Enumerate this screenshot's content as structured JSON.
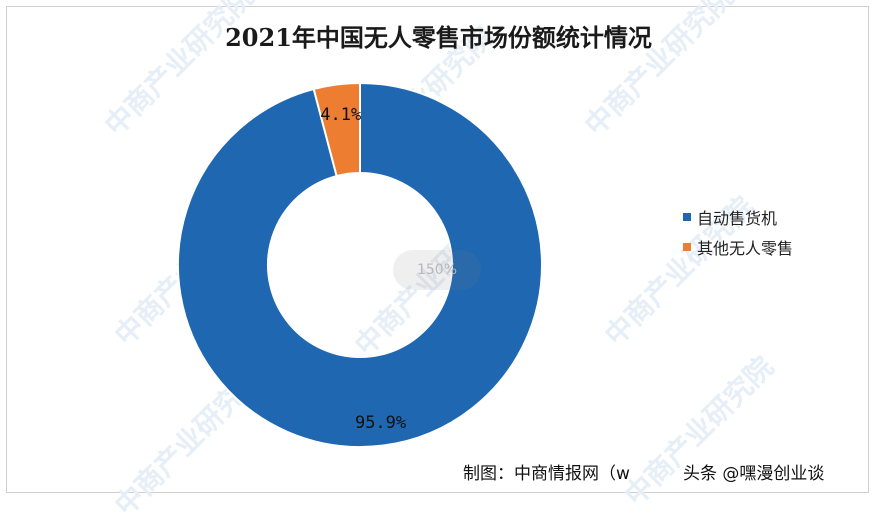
{
  "chart_data": {
    "type": "pie",
    "style": "donut",
    "title": "2021年中国无人零售市场份额统计情况",
    "categories": [
      "自动售货机",
      "其他无人零售"
    ],
    "values": [
      95.9,
      4.1
    ],
    "labels": [
      "95.9%",
      "4.1%"
    ],
    "colors": [
      "#1f67b1",
      "#ed7d31"
    ],
    "legend_position": "right"
  },
  "watermark_text": "中商产业研究院",
  "zoom_indicator": "150%",
  "source": "制图：中商情报网（w",
  "overlay_text": "头条 @嘿漫创业谈"
}
